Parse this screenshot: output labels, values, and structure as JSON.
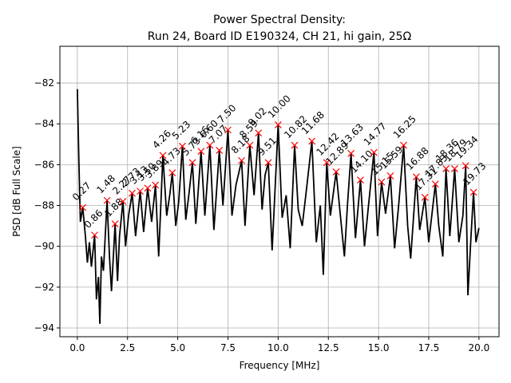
{
  "chart_data": {
    "type": "line",
    "title": "Power Spectral Density:",
    "subtitle": "Run 24, Board ID E190324, CH 21, hi gain, 25Ω",
    "x_label": "Frequency [MHz]",
    "y_label": "PSD [dB Full Scale]",
    "xlim": [
      -0.87,
      21.0
    ],
    "ylim": [
      -94.43,
      -80.2
    ],
    "grid": true,
    "xticks": [
      {
        "value": 0,
        "label": "0.0"
      },
      2.5,
      {
        "value": 5,
        "label": "5.0"
      },
      7.5,
      {
        "value": 10,
        "label": "10.0"
      },
      12.5,
      {
        "value": 15,
        "label": "15.0"
      },
      17.5,
      {
        "value": 20,
        "label": "20.0"
      }
    ],
    "yticks": [
      {
        "value": -94,
        "label": "−94"
      },
      {
        "value": -92,
        "label": "−92"
      },
      {
        "value": -90,
        "label": "−90"
      },
      {
        "value": -88,
        "label": "−88"
      },
      {
        "value": -86,
        "label": "−86"
      },
      {
        "value": -84,
        "label": "−84"
      },
      {
        "value": -82,
        "label": "−82"
      }
    ],
    "series": [
      {
        "color": "#000000",
        "x": [
          0.0,
          0.08,
          0.15,
          0.27,
          0.4,
          0.5,
          0.6,
          0.7,
          0.86,
          0.95,
          1.05,
          1.12,
          1.2,
          1.3,
          1.48,
          1.6,
          1.7,
          1.88,
          2.0,
          2.1,
          2.27,
          2.4,
          2.55,
          2.73,
          2.9,
          3.13,
          3.3,
          3.5,
          3.7,
          3.89,
          4.05,
          4.26,
          4.45,
          4.6,
          4.73,
          4.9,
          5.05,
          5.23,
          5.4,
          5.55,
          5.73,
          5.9,
          6.16,
          6.35,
          6.6,
          6.8,
          7.07,
          7.25,
          7.5,
          7.7,
          7.9,
          8.18,
          8.35,
          8.59,
          8.8,
          9.02,
          9.2,
          9.35,
          9.51,
          9.7,
          10.0,
          10.2,
          10.4,
          10.6,
          10.82,
          11.0,
          11.2,
          11.4,
          11.68,
          11.9,
          12.1,
          12.25,
          12.42,
          12.6,
          12.89,
          13.1,
          13.3,
          13.45,
          13.63,
          13.85,
          14.1,
          14.3,
          14.5,
          14.77,
          14.95,
          15.15,
          15.35,
          15.59,
          15.8,
          16.0,
          16.25,
          16.45,
          16.6,
          16.88,
          17.05,
          17.31,
          17.5,
          17.83,
          18.0,
          18.2,
          18.36,
          18.55,
          18.79,
          19.0,
          19.2,
          19.34,
          19.45,
          19.6,
          19.73,
          19.85,
          20.0
        ],
        "values": [
          -82.3,
          -86,
          -88.8,
          -88.1,
          -89.5,
          -90.8,
          -89.8,
          -91,
          -89.45,
          -92.6,
          -91.5,
          -93.8,
          -90.5,
          -91.2,
          -87.75,
          -90.5,
          -92.2,
          -88.9,
          -91.7,
          -89.5,
          -87.8,
          -90,
          -88.5,
          -87.4,
          -89.5,
          -87.3,
          -89.3,
          -87.15,
          -88.8,
          -87.0,
          -90.5,
          -85.55,
          -88.5,
          -87.5,
          -86.4,
          -89,
          -87.8,
          -85.1,
          -88.7,
          -87.5,
          -85.9,
          -88.9,
          -85.35,
          -88.5,
          -85.05,
          -89.2,
          -85.3,
          -88,
          -84.3,
          -88.5,
          -87,
          -85.8,
          -89,
          -85.05,
          -87.5,
          -84.45,
          -88.2,
          -86.5,
          -85.9,
          -90.2,
          -84.05,
          -88.6,
          -87.5,
          -90.1,
          -85.05,
          -88.2,
          -89,
          -87.3,
          -84.85,
          -89.8,
          -88,
          -91.4,
          -85.9,
          -88.5,
          -86.35,
          -88.5,
          -90.5,
          -88,
          -85.45,
          -89.6,
          -86.75,
          -90,
          -88,
          -85.4,
          -89.5,
          -86.85,
          -88.4,
          -86.55,
          -90.1,
          -88,
          -85.05,
          -89,
          -90.6,
          -86.6,
          -89.2,
          -87.6,
          -89.8,
          -86.95,
          -89,
          -90.5,
          -86.2,
          -89.5,
          -86.2,
          -89.8,
          -88.5,
          -86.05,
          -92.4,
          -89.6,
          -87.35,
          -89.8,
          -89.1
        ]
      },
      {
        "color": "#ff0000",
        "marker": "x",
        "x": [
          0.27,
          0.86,
          1.48,
          1.88,
          2.27,
          2.73,
          3.13,
          3.5,
          3.89,
          4.26,
          4.73,
          5.23,
          5.73,
          6.16,
          6.6,
          7.07,
          7.5,
          8.18,
          8.59,
          9.02,
          9.51,
          10.0,
          10.82,
          11.68,
          12.42,
          12.89,
          13.63,
          14.1,
          14.77,
          15.15,
          15.59,
          16.25,
          16.88,
          17.31,
          17.83,
          18.36,
          18.79,
          19.34,
          19.73
        ],
        "values": [
          -88.1,
          -89.45,
          -87.75,
          -88.9,
          -87.8,
          -87.4,
          -87.3,
          -87.15,
          -87.0,
          -85.55,
          -86.4,
          -85.1,
          -85.9,
          -85.35,
          -85.05,
          -85.3,
          -84.3,
          -85.8,
          -85.05,
          -84.45,
          -85.9,
          -84.05,
          -85.05,
          -84.85,
          -85.9,
          -86.35,
          -85.45,
          -86.75,
          -85.4,
          -86.85,
          -86.55,
          -85.05,
          -86.6,
          -87.6,
          -86.95,
          -86.2,
          -86.2,
          -86.05,
          -87.35
        ],
        "value_labels": [
          "0.27",
          "0.86",
          "1.48",
          "1.88",
          "2.27",
          "2.73",
          "3.13",
          "3.50",
          "3.89",
          "4.26",
          "4.73",
          "5.23",
          "5.73",
          "6.16",
          "6.60",
          "7.07",
          "7.50",
          "8.18",
          "8.59",
          "9.02",
          "9.51",
          "10.00",
          "10.82",
          "11.68",
          "12.42",
          "12.89",
          "13.63",
          "14.10",
          "14.77",
          "15.15",
          "15.59",
          "16.25",
          "16.88",
          "17.31",
          "17.83",
          "18.36",
          "18.79",
          "19.34",
          "19.73"
        ]
      }
    ]
  }
}
